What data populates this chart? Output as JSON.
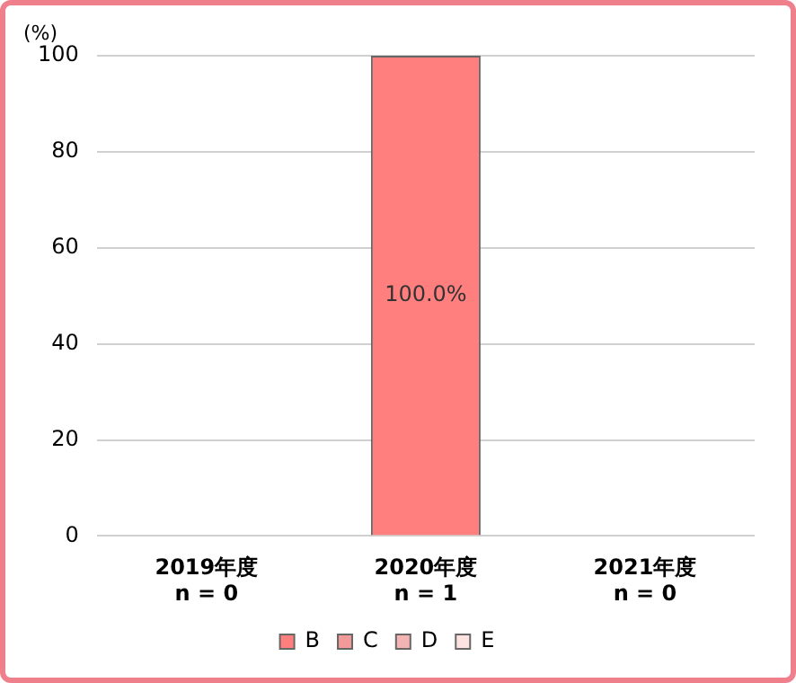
{
  "chart_data": {
    "type": "bar",
    "stacked": true,
    "ylabel": "(%)",
    "categories": [
      "2019年度\nn = 0",
      "2020年度\nn = 1",
      "2021年度\nn = 0"
    ],
    "series": [
      {
        "name": "B",
        "color": "#ff7f7f",
        "values": [
          null,
          100,
          null
        ],
        "value_labels": [
          null,
          "100.0%",
          null
        ]
      },
      {
        "name": "C",
        "color": "#f29a9a",
        "values": [
          null,
          null,
          null
        ]
      },
      {
        "name": "D",
        "color": "#f5b4b4",
        "values": [
          null,
          null,
          null
        ]
      },
      {
        "name": "E",
        "color": "#fde2e2",
        "values": [
          null,
          null,
          null
        ]
      }
    ],
    "ylim": [
      0,
      100
    ],
    "yticks": [
      0,
      20,
      40,
      60,
      80,
      100
    ],
    "grid": "y",
    "legend": "bottom"
  }
}
